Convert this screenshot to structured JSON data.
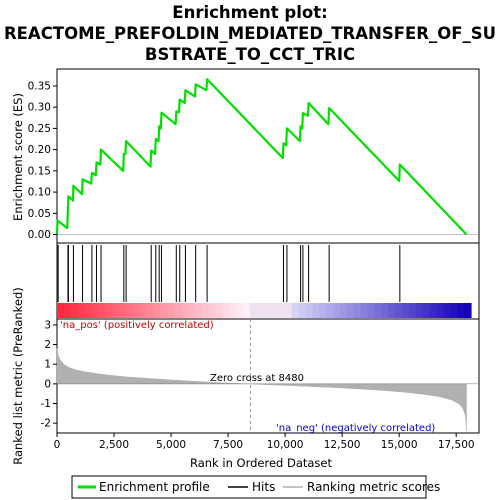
{
  "title_line1": "Enrichment plot:",
  "title_line2": "REACTOME_PREFOLDIN_MEDIATED_TRANSFER_OF_SU",
  "title_line3": "BSTRATE_TO_CCT_TRIC",
  "legend": {
    "enrichment_profile": "Enrichment profile",
    "hits": "Hits",
    "ranking_metric": "Ranking metric scores"
  },
  "colors": {
    "profile": "#00e000",
    "hits": "#000000",
    "metric": "#b0b0b0",
    "pos_label": "#cc0000",
    "neg_label": "#0000cc"
  },
  "chart_data": [
    {
      "type": "line",
      "name": "enrichment-score-panel",
      "ylabel": "Enrichment score (ES)",
      "xlim": [
        0,
        18500
      ],
      "ylim": [
        -0.02,
        0.39
      ],
      "yticks": [
        0.0,
        0.05,
        0.1,
        0.15,
        0.2,
        0.25,
        0.3,
        0.35
      ],
      "ytick_labels": [
        "0.00",
        "0.05",
        "0.10",
        "0.15",
        "0.20",
        "0.25",
        "0.30",
        "0.35"
      ],
      "grid": false,
      "series": [
        {
          "x": [
            0,
            20,
            450,
            480,
            500,
            700,
            720,
            1000,
            1100,
            1120,
            1500,
            1530,
            1700,
            1730,
            1900,
            1930,
            2900,
            2930,
            3000,
            3030,
            4100,
            4130,
            4300,
            4330,
            4450,
            4480,
            4550,
            4580,
            5200,
            5230,
            5350,
            5380,
            5600,
            5630,
            6050,
            6080,
            6550,
            6580,
            9900,
            9930,
            10050,
            10080,
            10650,
            10680,
            10750,
            10780,
            11000,
            11030,
            11900,
            11930,
            15000,
            15030,
            17950
          ],
          "y": [
            0.0,
            0.033,
            0.015,
            0.06,
            0.09,
            0.08,
            0.115,
            0.1,
            0.095,
            0.13,
            0.12,
            0.145,
            0.14,
            0.17,
            0.165,
            0.2,
            0.15,
            0.19,
            0.19,
            0.22,
            0.16,
            0.198,
            0.19,
            0.225,
            0.22,
            0.255,
            0.25,
            0.287,
            0.26,
            0.29,
            0.288,
            0.318,
            0.31,
            0.34,
            0.325,
            0.354,
            0.34,
            0.366,
            0.18,
            0.215,
            0.21,
            0.25,
            0.22,
            0.255,
            0.25,
            0.286,
            0.28,
            0.31,
            0.26,
            0.298,
            0.126,
            0.165,
            0.0
          ]
        }
      ]
    },
    {
      "type": "hits",
      "name": "hits-panel",
      "hit_positions": [
        50,
        480,
        500,
        720,
        1120,
        1530,
        1730,
        1930,
        2930,
        3030,
        4130,
        4330,
        4480,
        4580,
        5230,
        5380,
        5630,
        6080,
        6580,
        9930,
        10080,
        10680,
        10780,
        11030,
        11930,
        15030
      ]
    },
    {
      "type": "area",
      "name": "ranked-list-metric-panel",
      "xlabel": "Rank in Ordered Dataset",
      "ylabel": "Ranked list metric (PreRanked)",
      "xlim": [
        0,
        18500
      ],
      "ylim": [
        -2.5,
        3.3
      ],
      "yticks": [
        -2,
        -1,
        0,
        1,
        2,
        3
      ],
      "xticks": [
        0,
        2500,
        5000,
        7500,
        10000,
        12500,
        15000,
        17500
      ],
      "xtick_labels": [
        "0",
        "2,500",
        "5,000",
        "7,500",
        "10,000",
        "12,500",
        "15,000",
        "17,500"
      ],
      "x": [
        0,
        50,
        150,
        300,
        500,
        800,
        1200,
        2000,
        3000,
        4000,
        5000,
        6000,
        7000,
        8000,
        8480,
        9000,
        10000,
        11000,
        12000,
        13000,
        14000,
        15000,
        16000,
        16800,
        17300,
        17600,
        17800,
        17900,
        17950
      ],
      "values": [
        1.8,
        1.45,
        1.2,
        1.0,
        0.85,
        0.72,
        0.62,
        0.48,
        0.36,
        0.28,
        0.2,
        0.13,
        0.07,
        0.02,
        0.0,
        -0.03,
        -0.08,
        -0.13,
        -0.18,
        -0.24,
        -0.31,
        -0.4,
        -0.52,
        -0.66,
        -0.82,
        -1.0,
        -1.25,
        -1.6,
        -2.4
      ],
      "zero_cross_label": "Zero cross at 8480",
      "zero_cross": 8480,
      "pos_label": "'na_pos' (positively correlated)",
      "neg_label": "'na_neg' (negatively correlated)"
    }
  ]
}
